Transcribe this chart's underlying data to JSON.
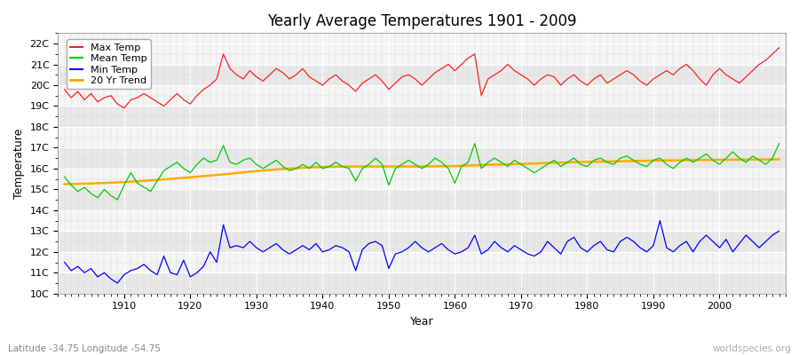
{
  "title": "Yearly Average Temperatures 1901 - 2009",
  "xlabel": "Year",
  "ylabel": "Temperature",
  "lat_lon_label": "Latitude -34.75 Longitude -54.75",
  "watermark": "worldspecies.org",
  "year_start": 1901,
  "year_end": 2009,
  "yticks": [
    10,
    11,
    12,
    13,
    14,
    15,
    16,
    17,
    18,
    19,
    20,
    21,
    22
  ],
  "ytick_labels": [
    "10C",
    "11C",
    "12C",
    "13C",
    "14C",
    "15C",
    "16C",
    "17C",
    "18C",
    "19C",
    "20C",
    "21C",
    "22C"
  ],
  "ylim": [
    10.0,
    22.5
  ],
  "xlim": [
    1900,
    2010
  ],
  "colors": {
    "max": "#ff2020",
    "mean": "#00cc00",
    "min": "#0000ff",
    "trend": "#ffaa00",
    "bg_dark": "#e8e8e8",
    "bg_light": "#f5f5f5",
    "grid_major": "#ffffff",
    "grid_minor": "#d8d8d8"
  },
  "legend_labels": [
    "Max Temp",
    "Mean Temp",
    "Min Temp",
    "20 Yr Trend"
  ],
  "max_temps": [
    19.8,
    19.4,
    19.7,
    19.3,
    19.6,
    19.2,
    19.4,
    19.5,
    19.1,
    18.9,
    19.3,
    19.4,
    19.6,
    19.4,
    19.2,
    19.0,
    19.3,
    19.6,
    19.3,
    19.1,
    19.5,
    19.8,
    20.0,
    20.3,
    21.5,
    20.8,
    20.5,
    20.3,
    20.7,
    20.4,
    20.2,
    20.5,
    20.8,
    20.6,
    20.3,
    20.5,
    20.8,
    20.4,
    20.2,
    20.0,
    20.3,
    20.5,
    20.2,
    20.0,
    19.7,
    20.1,
    20.3,
    20.5,
    20.2,
    19.8,
    20.1,
    20.4,
    20.5,
    20.3,
    20.0,
    20.3,
    20.6,
    20.8,
    21.0,
    20.7,
    21.0,
    21.3,
    21.5,
    19.5,
    20.3,
    20.5,
    20.7,
    21.0,
    20.7,
    20.5,
    20.3,
    20.0,
    20.3,
    20.5,
    20.4,
    20.0,
    20.3,
    20.5,
    20.2,
    20.0,
    20.3,
    20.5,
    20.1,
    20.3,
    20.5,
    20.7,
    20.5,
    20.2,
    20.0,
    20.3,
    20.5,
    20.7,
    20.5,
    20.8,
    21.0,
    20.7,
    20.3,
    20.0,
    20.5,
    20.8,
    20.5,
    20.3,
    20.1,
    20.4,
    20.7,
    21.0,
    21.2,
    21.5,
    21.8
  ],
  "mean_temps": [
    15.6,
    15.2,
    14.9,
    15.1,
    14.8,
    14.6,
    15.0,
    14.7,
    14.5,
    15.2,
    15.8,
    15.3,
    15.1,
    14.9,
    15.4,
    15.9,
    16.1,
    16.3,
    16.0,
    15.8,
    16.2,
    16.5,
    16.3,
    16.4,
    17.1,
    16.3,
    16.2,
    16.4,
    16.5,
    16.2,
    16.0,
    16.2,
    16.4,
    16.1,
    15.9,
    16.0,
    16.2,
    16.0,
    16.3,
    16.0,
    16.1,
    16.3,
    16.1,
    16.0,
    15.4,
    16.0,
    16.2,
    16.5,
    16.2,
    15.2,
    16.0,
    16.2,
    16.4,
    16.2,
    16.0,
    16.2,
    16.5,
    16.3,
    16.0,
    15.3,
    16.1,
    16.3,
    17.2,
    16.0,
    16.3,
    16.5,
    16.3,
    16.1,
    16.4,
    16.2,
    16.0,
    15.8,
    16.0,
    16.2,
    16.4,
    16.1,
    16.3,
    16.5,
    16.2,
    16.1,
    16.4,
    16.5,
    16.3,
    16.2,
    16.5,
    16.6,
    16.4,
    16.2,
    16.1,
    16.4,
    16.5,
    16.2,
    16.0,
    16.3,
    16.5,
    16.3,
    16.5,
    16.7,
    16.4,
    16.2,
    16.5,
    16.8,
    16.5,
    16.3,
    16.6,
    16.4,
    16.2,
    16.5,
    17.2
  ],
  "min_temps": [
    11.5,
    11.1,
    11.3,
    11.0,
    11.2,
    10.8,
    11.0,
    10.7,
    10.5,
    10.9,
    11.1,
    11.2,
    11.4,
    11.1,
    10.9,
    11.8,
    11.0,
    10.9,
    11.6,
    10.8,
    11.0,
    11.3,
    12.0,
    11.5,
    13.3,
    12.2,
    12.3,
    12.2,
    12.5,
    12.2,
    12.0,
    12.2,
    12.4,
    12.1,
    11.9,
    12.1,
    12.3,
    12.1,
    12.4,
    12.0,
    12.1,
    12.3,
    12.2,
    12.0,
    11.1,
    12.1,
    12.4,
    12.5,
    12.3,
    11.2,
    11.9,
    12.0,
    12.2,
    12.5,
    12.2,
    12.0,
    12.2,
    12.4,
    12.1,
    11.9,
    12.0,
    12.2,
    12.8,
    11.9,
    12.1,
    12.5,
    12.2,
    12.0,
    12.3,
    12.1,
    11.9,
    11.8,
    12.0,
    12.5,
    12.2,
    11.9,
    12.5,
    12.7,
    12.2,
    12.0,
    12.3,
    12.5,
    12.1,
    12.0,
    12.5,
    12.7,
    12.5,
    12.2,
    12.0,
    12.3,
    13.5,
    12.2,
    12.0,
    12.3,
    12.5,
    12.0,
    12.5,
    12.8,
    12.5,
    12.2,
    12.6,
    12.0,
    12.4,
    12.8,
    12.5,
    12.2,
    12.5,
    12.8,
    13.0
  ],
  "trend_years": [
    1901,
    1905,
    1910,
    1915,
    1920,
    1925,
    1930,
    1935,
    1940,
    1945,
    1950,
    1955,
    1960,
    1965,
    1970,
    1975,
    1980,
    1985,
    1990,
    1995,
    2000,
    2005,
    2009
  ],
  "trend_values": [
    15.25,
    15.28,
    15.35,
    15.45,
    15.58,
    15.72,
    15.88,
    16.0,
    16.08,
    16.1,
    16.1,
    16.1,
    16.12,
    16.18,
    16.22,
    16.28,
    16.32,
    16.35,
    16.38,
    16.4,
    16.42,
    16.43,
    16.44
  ]
}
